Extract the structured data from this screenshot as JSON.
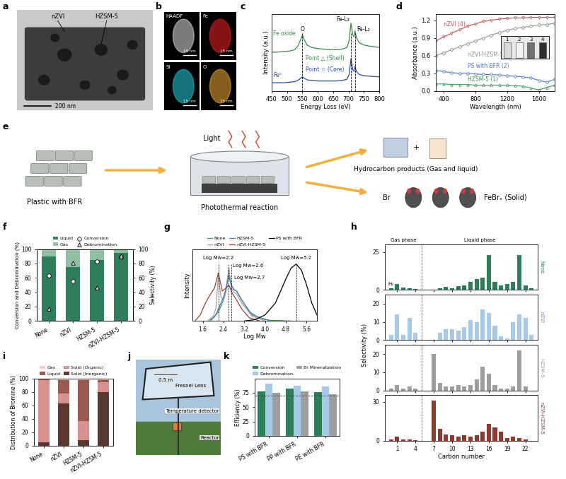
{
  "images": {
    "a": {
      "panel": "a",
      "labels": [
        "nZVI",
        "HZSM-5"
      ],
      "scale_bar": "200 nm"
    },
    "b": {
      "panel": "b",
      "maps": [
        {
          "name": "HAADF",
          "color": "#d0d0d0"
        },
        {
          "name": "Fe",
          "color": "#e02020"
        },
        {
          "name": "Si",
          "color": "#20c0d0"
        },
        {
          "name": "O",
          "color": "#e0a030"
        }
      ],
      "scale_bar": "15 nm"
    },
    "e": {
      "panel": "e",
      "feed": "Plastic with BFR",
      "light": "Light",
      "reactor": "Photothermal reaction",
      "plus": "+",
      "products": "Hydrocarbon products (Gas and liquid)",
      "bromine": "Br",
      "solid": "FeBrₓ (Solid)"
    },
    "j": {
      "panel": "j",
      "labels": [
        "Fresnel Lens",
        "Temperature detector",
        "Reactor"
      ],
      "scale_bar": "0.5 m"
    }
  },
  "chart_data": [
    {
      "panel": "c",
      "type": "line",
      "x_label": "Energy Loss (eV)",
      "y_label": "Intensity (a.u.)",
      "xlim": [
        450,
        800
      ],
      "xticks": [
        450,
        500,
        550,
        600,
        650,
        700,
        750,
        800
      ],
      "ylim": [
        0,
        1.3
      ],
      "tick_labels": "x",
      "x": [
        450,
        470,
        490,
        510,
        525,
        535,
        545,
        550,
        555,
        565,
        580,
        600,
        620,
        640,
        660,
        680,
        695,
        702,
        708,
        714,
        718,
        721,
        726,
        735,
        750,
        770,
        800
      ],
      "series": [
        {
          "name": "Fe oxide",
          "annotation": "Point △ (Shell)",
          "color": "#3a8a4a",
          "values": [
            0.66,
            0.66,
            0.67,
            0.68,
            0.7,
            0.76,
            0.88,
            0.95,
            0.88,
            0.78,
            0.74,
            0.72,
            0.71,
            0.7,
            0.7,
            0.71,
            0.74,
            0.85,
            1.15,
            0.95,
            0.92,
            1.02,
            0.9,
            0.82,
            0.78,
            0.76,
            0.74
          ]
        },
        {
          "name": "Fe⁰",
          "annotation": "Point ☆ (Core)",
          "color": "#2a4aa0",
          "values": [
            0.14,
            0.14,
            0.14,
            0.15,
            0.16,
            0.18,
            0.22,
            0.24,
            0.22,
            0.19,
            0.18,
            0.17,
            0.17,
            0.17,
            0.17,
            0.18,
            0.2,
            0.28,
            0.55,
            0.36,
            0.33,
            0.42,
            0.33,
            0.28,
            0.26,
            0.25,
            0.24
          ]
        }
      ],
      "markers": [
        {
          "label": "O",
          "x": 550
        },
        {
          "label": "Fe-L₃",
          "x": 708
        },
        {
          "label": "Fe-L₂",
          "x": 721
        }
      ]
    },
    {
      "panel": "d",
      "type": "line",
      "x_label": "Wavelength (nm)",
      "y_label": "Absorbance (a.u.)",
      "xlim": [
        300,
        1800
      ],
      "xticks": [
        400,
        800,
        1200,
        1600
      ],
      "ylim": [
        0,
        1.3
      ],
      "yticks": [
        0.0,
        0.3,
        0.6,
        0.9,
        1.2
      ],
      "x": [
        300,
        400,
        500,
        600,
        700,
        800,
        900,
        1000,
        1100,
        1200,
        1300,
        1400,
        1500,
        1600,
        1700,
        1800
      ],
      "series": [
        {
          "name": "nZVI (4)",
          "color": "#c0504d",
          "marker": "triangle_down",
          "values": [
            0.85,
            0.92,
            0.98,
            1.04,
            1.1,
            1.14,
            1.18,
            1.2,
            1.22,
            1.23,
            1.24,
            1.24,
            1.25,
            1.25,
            1.25,
            1.25
          ]
        },
        {
          "name": "nZVI-HZSM-5 (3)",
          "color": "#909090",
          "marker": "diamond",
          "values": [
            0.6,
            0.65,
            0.7,
            0.75,
            0.8,
            0.85,
            0.9,
            0.95,
            0.99,
            1.03,
            1.06,
            1.08,
            1.1,
            1.12,
            1.13,
            1.15
          ]
        },
        {
          "name": "PS with BFR (2)",
          "color": "#4a7ac0",
          "marker": "circle",
          "values": [
            0.35,
            0.33,
            0.31,
            0.3,
            0.3,
            0.29,
            0.28,
            0.28,
            0.27,
            0.26,
            0.25,
            0.24,
            0.22,
            0.18,
            0.15,
            0.2
          ]
        },
        {
          "name": "HZSM-5 (1)",
          "color": "#3a9a5a",
          "marker": "triangle_up",
          "values": [
            0.12,
            0.12,
            0.11,
            0.11,
            0.11,
            0.1,
            0.1,
            0.1,
            0.1,
            0.1,
            0.09,
            0.08,
            0.05,
            0.02,
            0.06,
            0.1
          ]
        }
      ],
      "inset_labels": [
        "1",
        "2",
        "3",
        "4"
      ]
    },
    {
      "panel": "f",
      "type": "bar",
      "stacked": true,
      "legend": "top",
      "categories": [
        "None",
        "nZVI",
        "HZSM-5",
        "nZVI-HZSM-5"
      ],
      "y_label": "Conversion and Debromination (%)",
      "y2_label": "Selectivity (%)",
      "ylim": [
        0,
        100
      ],
      "yticks": [
        0,
        20,
        40,
        60,
        80,
        100
      ],
      "y2lim": [
        0,
        100
      ],
      "y2ticks": [
        0,
        20,
        40,
        60,
        80,
        100
      ],
      "series": [
        {
          "name": "Liquid",
          "color": "#2e7d5b",
          "axis": "y2",
          "values": [
            90,
            75,
            85,
            95
          ]
        },
        {
          "name": "Gas",
          "color": "#8fbf9f",
          "axis": "y2",
          "values": [
            10,
            25,
            15,
            5
          ]
        },
        {
          "name": "Conversion",
          "type": "scatter",
          "marker": "circle",
          "color": "#ffffff",
          "values": [
            63,
            55,
            83,
            89
          ]
        },
        {
          "name": "Debromination",
          "type": "scatter",
          "marker": "triangle_up",
          "color": "#d9d9d9",
          "values": [
            17,
            81,
            46,
            91
          ]
        }
      ]
    },
    {
      "panel": "g",
      "type": "line",
      "x_label": "Log Mw",
      "y_label": "Intensity",
      "legend": "top",
      "xlim": [
        1.2,
        6.0
      ],
      "xticks": [
        1.6,
        2.4,
        3.2,
        4.0,
        4.8,
        5.6
      ],
      "ylim": [
        0,
        1.2
      ],
      "tick_labels": "x",
      "series": [
        {
          "name": "None",
          "color": "#3a9a4a",
          "x": [
            1.8,
            2.0,
            2.2,
            2.4,
            2.5,
            2.6,
            2.7,
            2.8,
            2.9,
            3.1,
            3.4,
            3.8,
            4.2,
            5.0
          ],
          "values": [
            0.0,
            0.05,
            0.15,
            0.35,
            0.55,
            0.85,
            0.6,
            0.52,
            0.5,
            0.35,
            0.15,
            0.04,
            0.01,
            0.0
          ]
        },
        {
          "name": "nZVI",
          "color": "#a0a0a0",
          "x": [
            1.8,
            2.0,
            2.1,
            2.2,
            2.3,
            2.4,
            2.5,
            2.6,
            2.7,
            2.8,
            2.9,
            3.1,
            3.5,
            4.0
          ],
          "values": [
            0.0,
            0.08,
            0.2,
            0.75,
            0.4,
            0.35,
            0.5,
            0.88,
            0.55,
            0.48,
            0.45,
            0.3,
            0.08,
            0.0
          ]
        },
        {
          "name": "HZSM-5",
          "color": "#4a7ac0",
          "x": [
            1.9,
            2.1,
            2.2,
            2.4,
            2.5,
            2.6,
            2.7,
            2.8,
            2.9,
            3.1,
            3.5,
            4.2
          ],
          "values": [
            0.0,
            0.1,
            0.2,
            0.4,
            0.55,
            0.75,
            0.6,
            0.52,
            0.5,
            0.35,
            0.1,
            0.0
          ]
        },
        {
          "name": "nZVI-HZSM-5",
          "color": "#9a4030",
          "x": [
            1.3,
            1.5,
            1.7,
            1.9,
            2.05,
            2.2,
            2.35,
            2.5,
            2.6,
            2.75,
            2.9,
            3.1,
            3.4,
            3.8
          ],
          "values": [
            0.0,
            0.1,
            0.3,
            0.45,
            0.55,
            0.8,
            0.5,
            0.55,
            0.6,
            0.45,
            0.35,
            0.2,
            0.05,
            0.0
          ]
        },
        {
          "name": "PS with BFR",
          "color": "#000000",
          "x": [
            3.2,
            3.6,
            4.0,
            4.4,
            4.8,
            5.0,
            5.2,
            5.4,
            5.6,
            5.8,
            6.0
          ],
          "values": [
            0.0,
            0.02,
            0.1,
            0.3,
            0.7,
            0.88,
            0.95,
            0.85,
            0.6,
            0.3,
            0.1
          ]
        }
      ],
      "annotations": [
        {
          "text": "Log Mw=2.2",
          "x": 2.2
        },
        {
          "text": "Log Mw=2.6",
          "x": 2.6
        },
        {
          "text": "Log Mw=2.7",
          "x": 2.7
        },
        {
          "text": "Log Mw=5.2",
          "x": 5.2
        }
      ]
    },
    {
      "panel": "h",
      "type": "bar",
      "x_label": "Carbon number",
      "y_label": "Selectivity (%)",
      "xlim": [
        -1,
        24
      ],
      "xticks": [
        1,
        4,
        7,
        10,
        13,
        16,
        19,
        22
      ],
      "x": [
        0,
        1,
        2,
        3,
        4,
        7,
        8,
        9,
        10,
        11,
        12,
        13,
        14,
        15,
        16,
        17,
        18,
        19,
        20,
        21,
        22,
        23
      ],
      "phase_boundary": 5,
      "phase_labels": [
        "Gas phase",
        "Liquid phase"
      ],
      "annotations": [
        {
          "text": "H₂",
          "x": 0
        }
      ],
      "series": [
        {
          "name": "None",
          "color": "#2e7d5b",
          "ylim": [
            0,
            30
          ],
          "yticks": [
            0,
            25
          ],
          "values": [
            1,
            4,
            1.5,
            1,
            0.5,
            0,
            1,
            2,
            1,
            2.5,
            3,
            5,
            7,
            8,
            23,
            5,
            3,
            4,
            5,
            23,
            3,
            1
          ]
        },
        {
          "name": "nZVI",
          "color": "#a8c8e8",
          "ylim": [
            0,
            25
          ],
          "yticks": [
            0,
            10,
            20
          ],
          "values": [
            3,
            14,
            3,
            12,
            4,
            0,
            4,
            6,
            6,
            5,
            7,
            11,
            10,
            17,
            15,
            8,
            2,
            1,
            10,
            14,
            12,
            3
          ]
        },
        {
          "name": "HZSM-5",
          "color": "#9e9e9e",
          "ylim": [
            0,
            25
          ],
          "yticks": [
            0,
            10,
            20
          ],
          "values": [
            1,
            3,
            1,
            2,
            1,
            20,
            4,
            2,
            2,
            3,
            2,
            3,
            6,
            13,
            9,
            3,
            1,
            1,
            2,
            22,
            2,
            0
          ]
        },
        {
          "name": "nZVI-HZSM-5",
          "color": "#8b3a2f",
          "ylim": [
            0,
            35
          ],
          "yticks": [
            0,
            30
          ],
          "values": [
            1,
            3,
            1,
            1,
            0.5,
            31,
            9,
            5,
            4,
            3,
            4,
            3,
            4,
            7,
            13,
            10,
            7,
            2,
            3,
            2,
            1,
            0
          ]
        }
      ]
    },
    {
      "panel": "i",
      "type": "bar",
      "stacked": true,
      "legend": "top",
      "categories": [
        "None",
        "nZVI",
        "HZSM-5",
        "nZVI-HZSM-5"
      ],
      "y_label": "Distribution of Bromine (%)",
      "ylim": [
        0,
        100
      ],
      "yticks": [
        0,
        20,
        40,
        60,
        80,
        100
      ],
      "series": [
        {
          "name": "Solid (Inorganic)",
          "color": "#5a3a30",
          "values": [
            5,
            63,
            8,
            80
          ]
        },
        {
          "name": "Solid (Organic)",
          "color": "#d99090",
          "values": [
            93,
            14,
            28,
            14
          ]
        },
        {
          "name": "Liquid",
          "color": "#9a5a4f",
          "values": [
            1,
            21,
            62,
            4
          ]
        },
        {
          "name": "Gas",
          "color": "#f4cccc",
          "values": [
            1,
            2,
            2,
            2
          ]
        }
      ]
    },
    {
      "panel": "k",
      "type": "bar",
      "legend": "top",
      "categories": [
        "PS with BFR",
        "PP with BFR",
        "PE with BFR"
      ],
      "y_label": "Efficiency (%)",
      "ylim": [
        0,
        100
      ],
      "yticks": [
        0,
        25,
        50,
        75
      ],
      "reference_line": 70,
      "series": [
        {
          "name": "Conversion",
          "color": "#2e7d5b",
          "values": [
            78,
            82,
            76
          ]
        },
        {
          "name": "Debromination",
          "color": "#a8c8e8",
          "values": [
            91,
            87,
            86
          ]
        },
        {
          "name": "Br Mineralization",
          "color": "#9e9e9e",
          "values": [
            75,
            78,
            72
          ]
        }
      ]
    }
  ]
}
